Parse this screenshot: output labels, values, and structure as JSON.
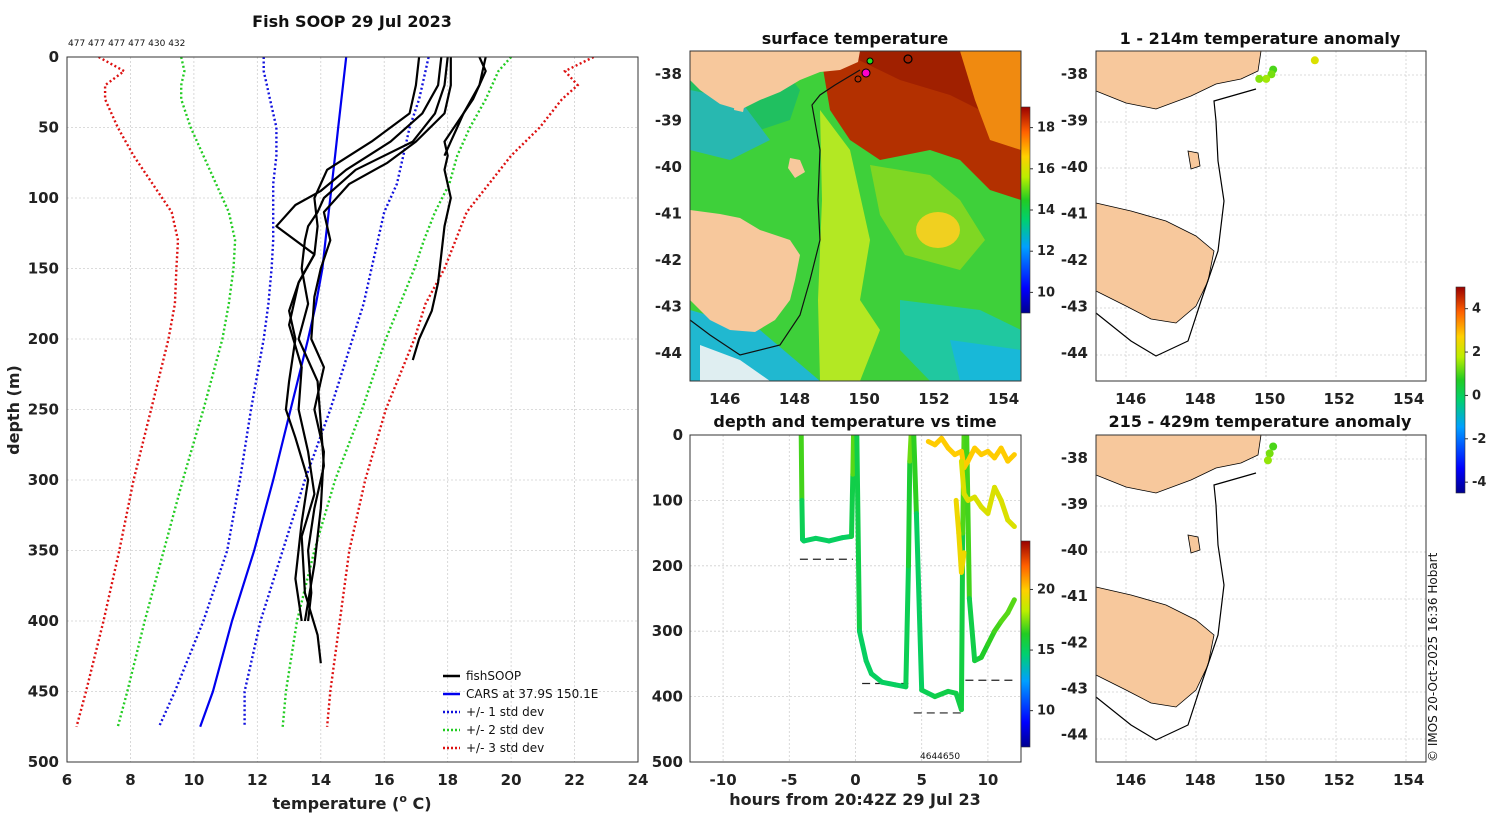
{
  "figure_title": "Fish SOOP 29 Jul 2023",
  "counts_label": "477 477 477 477 430 432",
  "credit": "© IMOS 20-Oct-2025 16:36 Hobart",
  "colors": {
    "fishsoop": "#000000",
    "cars": "#0000ee",
    "std1": "#1010dd",
    "std2": "#22cc22",
    "std3": "#dd1111",
    "land": "#f7c89c",
    "contour": "#111111"
  },
  "chart_data": [
    {
      "id": "profile",
      "type": "line",
      "title": "Fish SOOP 29 Jul 2023",
      "xlabel": "temperature (",
      "xlabel_sup": "o",
      "xlabel_end": " C)",
      "ylabel": "depth (m)",
      "xlim": [
        6,
        24
      ],
      "ylim": [
        500,
        0
      ],
      "xticks": [
        "6",
        "8",
        "10",
        "12",
        "14",
        "16",
        "18",
        "20",
        "22",
        "24"
      ],
      "yticks": [
        "0",
        "50",
        "100",
        "150",
        "200",
        "250",
        "300",
        "350",
        "400",
        "450",
        "500"
      ],
      "legend": [
        "fishSOOP",
        "CARS at 37.9S 150.1E",
        "+/- 1 std dev",
        "+/- 2 std dev",
        "+/- 3 std dev"
      ],
      "legend_location": "bottom-right",
      "depths": [
        0,
        10,
        20,
        30,
        50,
        70,
        90,
        110,
        130,
        150,
        175,
        200,
        250,
        300,
        350,
        400,
        450,
        475
      ],
      "cars": [
        14.8,
        14.75,
        14.7,
        14.65,
        14.55,
        14.45,
        14.35,
        14.25,
        14.15,
        14.05,
        13.85,
        13.6,
        13.05,
        12.5,
        11.9,
        11.2,
        10.6,
        10.2
      ],
      "std_minus1": [
        12.2,
        12.2,
        12.3,
        12.4,
        12.6,
        12.6,
        12.5,
        12.5,
        12.5,
        12.45,
        12.35,
        12.2,
        11.8,
        11.45,
        11.05,
        10.3,
        9.4,
        8.9
      ],
      "std_plus1": [
        17.4,
        17.3,
        17.2,
        17.1,
        16.8,
        16.6,
        16.4,
        16.0,
        15.8,
        15.6,
        15.35,
        15.0,
        14.3,
        13.5,
        12.8,
        12.1,
        11.6,
        11.6
      ],
      "std_minus2": [
        9.6,
        9.7,
        9.6,
        9.6,
        9.9,
        10.3,
        10.7,
        11.1,
        11.3,
        11.25,
        11.1,
        10.9,
        10.3,
        9.65,
        9.05,
        8.45,
        7.9,
        7.6
      ],
      "std_plus2": [
        20.0,
        19.6,
        19.4,
        19.2,
        18.7,
        18.3,
        18.05,
        17.6,
        17.25,
        16.95,
        16.5,
        16.05,
        15.3,
        14.45,
        13.8,
        13.25,
        12.9,
        12.8
      ],
      "std_minus3": [
        7.0,
        7.8,
        7.2,
        7.2,
        7.6,
        8.1,
        8.7,
        9.3,
        9.5,
        9.45,
        9.4,
        9.2,
        8.65,
        8.1,
        7.65,
        7.15,
        6.6,
        6.3
      ],
      "std_plus3": [
        22.6,
        21.7,
        22.1,
        21.6,
        20.9,
        20.0,
        19.3,
        18.6,
        18.25,
        17.9,
        17.3,
        16.95,
        16.05,
        15.4,
        14.9,
        14.6,
        14.3,
        14.2
      ],
      "fishsoop": [
        {
          "depths": [
            0,
            20,
            40,
            60,
            80,
            90,
            100,
            110,
            120,
            130,
            150,
            175,
            200,
            230,
            260,
            290,
            320,
            350,
            380,
            400
          ],
          "temps": [
            18.0,
            17.9,
            17.6,
            16.9,
            15.1,
            14.6,
            14.1,
            13.9,
            13.6,
            13.5,
            13.4,
            13.6,
            13.3,
            13.9,
            14.0,
            14.1,
            13.8,
            13.6,
            13.7,
            13.6
          ]
        },
        {
          "depths": [
            0,
            20,
            40,
            60,
            80,
            95,
            105,
            120,
            140,
            160,
            190,
            220,
            250,
            280,
            310,
            340,
            380,
            410,
            430
          ],
          "temps": [
            17.8,
            17.7,
            17.2,
            16.2,
            14.8,
            14.0,
            13.2,
            12.6,
            13.8,
            13.3,
            13.0,
            13.4,
            13.3,
            13.6,
            13.8,
            13.4,
            13.5,
            13.9,
            14.0
          ]
        },
        {
          "depths": [
            0,
            20,
            40,
            60,
            80,
            100,
            120,
            140,
            160,
            180,
            200,
            230,
            250,
            270,
            300,
            330,
            370,
            400
          ],
          "temps": [
            17.1,
            17.0,
            16.8,
            15.6,
            14.2,
            13.8,
            13.9,
            13.8,
            13.3,
            13.0,
            13.2,
            13.0,
            12.9,
            13.2,
            13.6,
            13.4,
            13.2,
            13.4
          ]
        },
        {
          "depths": [
            0,
            20,
            40,
            60,
            75,
            90,
            110,
            130,
            150,
            170,
            200,
            220,
            250,
            280,
            320,
            360,
            400
          ],
          "temps": [
            18.1,
            18.1,
            17.9,
            17.0,
            16.1,
            14.9,
            14.1,
            14.3,
            14.0,
            13.8,
            13.7,
            14.1,
            13.8,
            14.1,
            14.0,
            13.8,
            13.5
          ]
        },
        {
          "depths": [
            0,
            10,
            20,
            30,
            40,
            50,
            60,
            70
          ],
          "temps": [
            19.0,
            19.2,
            19.0,
            18.8,
            18.5,
            18.3,
            18.1,
            17.9
          ]
        },
        {
          "depths": [
            0,
            20,
            40,
            60,
            70,
            80,
            100,
            120,
            140,
            160,
            180,
            200,
            215
          ],
          "temps": [
            19.2,
            19.0,
            18.5,
            17.9,
            18.0,
            17.9,
            18.1,
            17.9,
            17.8,
            17.7,
            17.5,
            17.1,
            16.9
          ]
        }
      ]
    },
    {
      "id": "sst",
      "type": "heatmap",
      "title": "surface temperature",
      "xticks": [
        "146",
        "148",
        "150",
        "152",
        "154"
      ],
      "yticks": [
        "-38",
        "-39",
        "-40",
        "-41",
        "-42",
        "-43",
        "-44"
      ],
      "xlim": [
        145,
        154.5
      ],
      "ylim": [
        -44.6,
        -37.5
      ],
      "colorbar_ticks": [
        "10",
        "12",
        "14",
        "16",
        "18"
      ],
      "colorbar_range": [
        9,
        19
      ]
    },
    {
      "id": "anom1",
      "type": "scatter",
      "title": "1 - 214m temperature anomaly",
      "xticks": [
        "146",
        "148",
        "150",
        "152",
        "154"
      ],
      "yticks": [
        "-38",
        "-39",
        "-40",
        "-41",
        "-42",
        "-43",
        "-44"
      ],
      "xlim": [
        145,
        154.5
      ],
      "ylim": [
        -44.6,
        -37.5
      ],
      "points": [
        {
          "lon": 151.3,
          "lat": -37.7,
          "anom": 2.2
        },
        {
          "lon": 150.1,
          "lat": -37.9,
          "anom": 1.0
        },
        {
          "lon": 150.05,
          "lat": -38.0,
          "anom": 1.3
        },
        {
          "lon": 149.9,
          "lat": -38.1,
          "anom": 1.6
        },
        {
          "lon": 149.7,
          "lat": -38.1,
          "anom": 1.4
        }
      ]
    },
    {
      "id": "anom2",
      "type": "scatter",
      "title": "215 - 429m temperature anomaly",
      "xticks": [
        "146",
        "148",
        "150",
        "152",
        "154"
      ],
      "yticks": [
        "-38",
        "-39",
        "-40",
        "-41",
        "-42",
        "-43",
        "-44"
      ],
      "xlim": [
        145,
        154.5
      ],
      "ylim": [
        -44.6,
        -37.5
      ],
      "points": [
        {
          "lon": 150.1,
          "lat": -37.75,
          "anom": 1.0
        },
        {
          "lon": 150.0,
          "lat": -37.9,
          "anom": 1.3
        },
        {
          "lon": 149.95,
          "lat": -38.05,
          "anom": 1.5
        }
      ]
    },
    {
      "id": "anom_colorbar",
      "type": "colorbar",
      "ticks": [
        "4",
        "2",
        "0",
        "-2",
        "-4"
      ],
      "range": [
        -4.5,
        5
      ]
    },
    {
      "id": "timedepth",
      "type": "scatter",
      "title": "depth and temperature vs time",
      "xlabel": "hours from 20:42Z 29 Jul 23",
      "xticks": [
        "-10",
        "-5",
        "0",
        "5",
        "10"
      ],
      "yticks": [
        "0",
        "100",
        "200",
        "300",
        "400",
        "500"
      ],
      "xlim": [
        -12.5,
        12.5
      ],
      "ylim": [
        500,
        0
      ],
      "colorbar_ticks": [
        "10",
        "15",
        "20"
      ],
      "colorbar_range": [
        7,
        24
      ],
      "annotation": "4644650",
      "casts": [
        {
          "times": [
            -4.1,
            -4.05,
            -4.0,
            -3.9,
            -3.0,
            -2.0,
            -1.0,
            -0.3,
            -0.2,
            -0.15
          ],
          "depths": [
            0,
            100,
            160,
            162,
            158,
            162,
            157,
            155,
            60,
            0
          ],
          "temps": [
            18,
            15.5,
            15,
            15,
            15,
            15,
            15,
            15,
            16,
            18
          ]
        },
        {
          "times": [
            0.1,
            0.3,
            0.8,
            1.2,
            2.0,
            3.0,
            3.8,
            4.0,
            4.1,
            4.2
          ],
          "depths": [
            0,
            300,
            345,
            365,
            378,
            382,
            385,
            200,
            40,
            0
          ],
          "temps": [
            16,
            15,
            15,
            15,
            15,
            15,
            15,
            15.5,
            16.5,
            18
          ]
        },
        {
          "times": [
            4.4,
            4.6,
            5.0,
            6.0,
            7.0,
            7.6,
            8.0,
            8.1,
            8.2
          ],
          "depths": [
            0,
            120,
            390,
            400,
            392,
            395,
            420,
            150,
            0
          ],
          "temps": [
            18,
            15,
            15,
            15.5,
            15.5,
            15.5,
            15.5,
            15.8,
            18
          ]
        },
        {
          "times": [
            8.4,
            8.6,
            9.0,
            9.5,
            10.0,
            10.5,
            11.0,
            11.5,
            12.0
          ],
          "depths": [
            0,
            250,
            345,
            340,
            320,
            300,
            285,
            272,
            252
          ],
          "temps": [
            18,
            15.5,
            15.5,
            16,
            16.5,
            16.5,
            17,
            17,
            17
          ]
        },
        {
          "times": [
            5.5,
            6.0,
            6.5,
            7.0,
            7.5,
            8.0,
            8.2,
            8.5,
            9.0,
            9.5,
            10.0,
            10.5,
            11.0,
            11.5,
            12.0
          ],
          "depths": [
            10,
            15,
            5,
            20,
            30,
            25,
            50,
            40,
            20,
            30,
            25,
            35,
            20,
            40,
            30
          ],
          "temps": [
            20,
            20,
            20,
            20,
            20,
            20,
            20,
            20,
            20,
            20,
            20,
            20,
            20,
            20,
            20
          ]
        },
        {
          "times": [
            8.0,
            8.2,
            8.5,
            9.0,
            9.5,
            10.0,
            10.5,
            11.0,
            11.5,
            12.0
          ],
          "depths": [
            40,
            90,
            100,
            95,
            110,
            120,
            80,
            100,
            130,
            140
          ],
          "temps": [
            19,
            19,
            19,
            19,
            19,
            19,
            19,
            19,
            19,
            19
          ]
        },
        {
          "times": [
            7.6,
            7.8,
            8.0,
            8.2
          ],
          "depths": [
            100,
            150,
            210,
            180
          ],
          "temps": [
            19.5,
            19.5,
            19.5,
            19.5
          ]
        }
      ],
      "bottom_depths": [
        {
          "t0": -4.2,
          "t1": -0.2,
          "depth": 190
        },
        {
          "t0": 0.5,
          "t1": 4.0,
          "depth": 380
        },
        {
          "t0": 4.4,
          "t1": 8.0,
          "depth": 425
        },
        {
          "t0": 8.3,
          "t1": 12.0,
          "depth": 375
        }
      ]
    }
  ]
}
